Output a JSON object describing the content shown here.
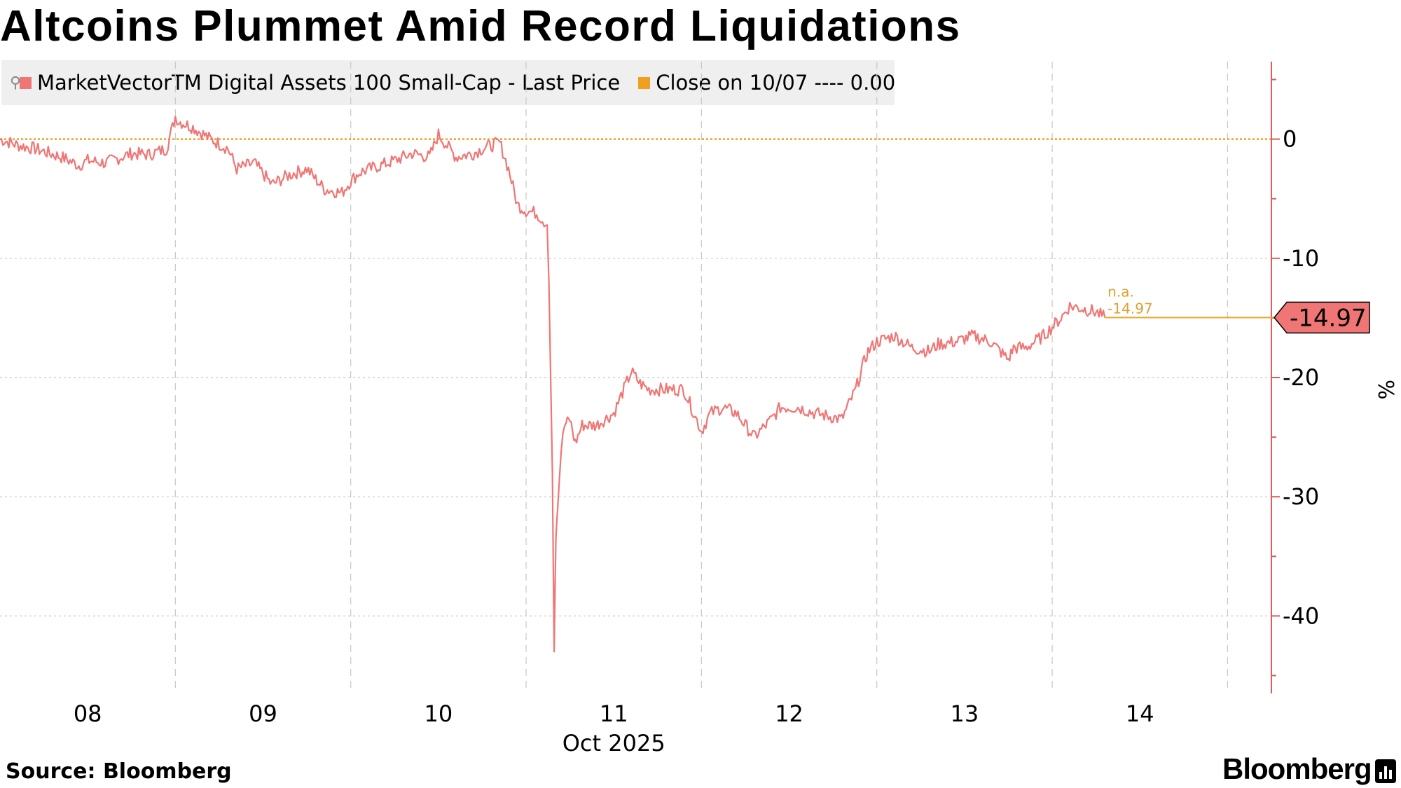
{
  "title": "Altcoins Plummet Amid Record Liquidations",
  "source": "Source: Bloomberg",
  "brand": "Bloomberg",
  "colors": {
    "series": "#f07575",
    "close_line": "#f0a020",
    "axis": "#e35a5a",
    "grid": "#c8c8c8",
    "legend_bg": "#efefef"
  },
  "legend": {
    "series_label": "MarketVectorTM Digital Assets 100 Small-Cap - Last Price",
    "close_label": "Close on 10/07 ---- 0.00"
  },
  "chart_data": {
    "type": "line",
    "title": "Altcoins Plummet Amid Record Liquidations",
    "x_unit": "day of Oct 2025",
    "xlabel": "Oct 2025",
    "ylabel": "%",
    "xlim": [
      7.5,
      14.75
    ],
    "ylim": [
      -46.5,
      6.5
    ],
    "y_ticks": [
      0,
      -10,
      -20,
      -30,
      -40
    ],
    "y_tick_labels": [
      "0",
      "-10",
      "-20",
      "-30",
      "-40"
    ],
    "x_ticks": [
      8,
      9,
      10,
      11,
      12,
      13,
      14
    ],
    "x_tick_labels": [
      "08",
      "09",
      "10",
      "11",
      "12",
      "13",
      "14"
    ],
    "x_sublabel": "Oct 2025",
    "grid": true,
    "legend_position": "top-left",
    "series": [
      {
        "name": "MarketVectorTM Digital Assets 100 Small-Cap - Last Price",
        "x": [
          7.5,
          7.6,
          7.7,
          7.85,
          7.95,
          8.0,
          8.1,
          8.25,
          8.35,
          8.45,
          8.5,
          8.52,
          8.6,
          8.7,
          8.8,
          8.85,
          8.95,
          9.05,
          9.15,
          9.25,
          9.35,
          9.45,
          9.5,
          9.55,
          9.65,
          9.75,
          9.85,
          9.95,
          10.0,
          10.1,
          10.2,
          10.25,
          10.35,
          10.4,
          10.45,
          10.5,
          10.56,
          10.62,
          10.63,
          10.65,
          10.66,
          10.67,
          10.68,
          10.7,
          10.72,
          10.75,
          10.78,
          10.82,
          10.9,
          11.0,
          11.1,
          11.15,
          11.2,
          11.3,
          11.4,
          11.5,
          11.55,
          11.62,
          11.7,
          11.8,
          11.9,
          11.95,
          12.05,
          12.15,
          12.3,
          12.38,
          12.42,
          12.45,
          12.5,
          12.6,
          12.7,
          12.8,
          12.85,
          12.95,
          13.05,
          13.15,
          13.25,
          13.28,
          13.35,
          13.45,
          13.55,
          13.6,
          13.67,
          13.75,
          13.8
        ],
        "y": [
          0.0,
          -0.5,
          -0.8,
          -1.5,
          -2.2,
          -1.8,
          -2.0,
          -1.2,
          -1.3,
          -0.8,
          1.9,
          1.5,
          1.0,
          0.0,
          -0.8,
          -2.5,
          -2.0,
          -3.8,
          -3.0,
          -2.5,
          -4.2,
          -4.5,
          -3.5,
          -2.8,
          -2.3,
          -1.8,
          -1.2,
          -1.5,
          0.4,
          -1.5,
          -1.2,
          -0.8,
          -0.3,
          -2.5,
          -5.5,
          -6.0,
          -6.2,
          -7.2,
          -12.0,
          -28.0,
          -43.0,
          -33.0,
          -31.0,
          -26.0,
          -24.0,
          -23.5,
          -25.5,
          -24.0,
          -24.0,
          -23.0,
          -19.5,
          -20.5,
          -21.0,
          -21.0,
          -21.0,
          -24.5,
          -23.0,
          -22.5,
          -23.0,
          -25.0,
          -23.5,
          -22.5,
          -22.5,
          -23.0,
          -23.5,
          -21.0,
          -19.0,
          -17.8,
          -17.0,
          -16.5,
          -17.5,
          -17.8,
          -17.2,
          -17.0,
          -16.5,
          -17.0,
          -18.5,
          -17.5,
          -17.5,
          -16.5,
          -15.0,
          -14.0,
          -14.2,
          -14.5,
          -14.97
        ]
      },
      {
        "name": "Close on 10/07",
        "x": [
          7.5,
          14.75
        ],
        "y": [
          0.0,
          0.0
        ]
      }
    ],
    "annotations": {
      "last_value_label": "-14.97",
      "na_label": "n.a.",
      "close_small_label": "-14.97"
    }
  }
}
